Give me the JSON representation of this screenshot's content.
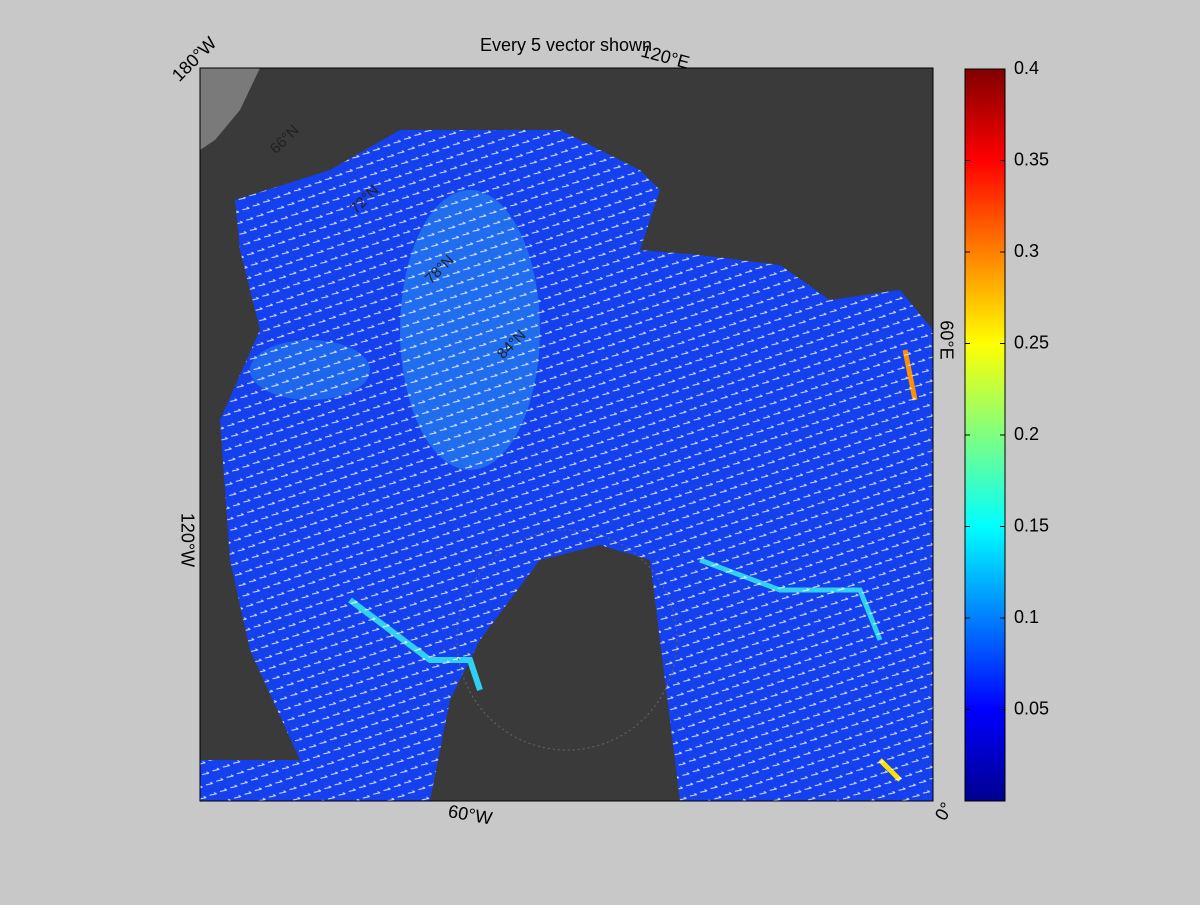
{
  "chart_data": {
    "type": "map",
    "title": "Every 5 vector shown",
    "colormap": "jet",
    "colorbar": {
      "ylim": [
        0,
        0.4
      ],
      "yticks": [
        0.05,
        0.1,
        0.15,
        0.2,
        0.25,
        0.3,
        0.35,
        0.4
      ]
    },
    "lon_labels": [
      "180°W",
      "120°E",
      "60°E",
      "0°",
      "60°W",
      "120°W"
    ],
    "lat_labels": [
      "66°N",
      "72°N",
      "78°N",
      "84°N"
    ]
  }
}
